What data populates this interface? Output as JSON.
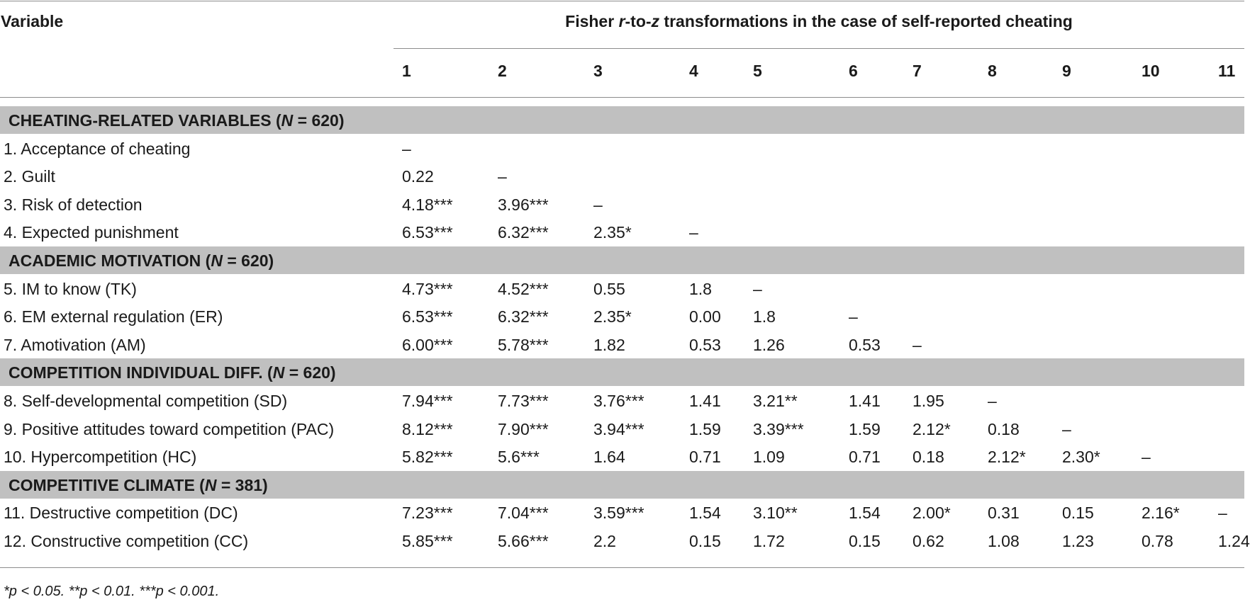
{
  "header": {
    "variable_label": "Variable",
    "title_parts": [
      "Fisher ",
      "r",
      "-to-",
      "z",
      " transformations in the case of self-reported cheating"
    ],
    "columns": [
      "1",
      "2",
      "3",
      "4",
      "5",
      "6",
      "7",
      "8",
      "9",
      "10",
      "11"
    ]
  },
  "sections": [
    {
      "label": "CHEATING-RELATED VARIABLES (",
      "n_symbol": "N",
      "n_text": " = 620)",
      "rows": [
        {
          "label": "1. Acceptance of cheating",
          "cells": [
            "–"
          ]
        },
        {
          "label": "2. Guilt",
          "cells": [
            "0.22",
            "–"
          ]
        },
        {
          "label": "3. Risk of detection",
          "cells": [
            "4.18***",
            "3.96***",
            "–"
          ]
        },
        {
          "label": "4. Expected punishment",
          "cells": [
            "6.53***",
            "6.32***",
            "2.35*",
            "–"
          ]
        }
      ]
    },
    {
      "label": "ACADEMIC MOTIVATION (",
      "n_symbol": "N",
      "n_text": " = 620)",
      "rows": [
        {
          "label": "5. IM to know (TK)",
          "cells": [
            "4.73***",
            "4.52***",
            "0.55",
            "1.8",
            "–"
          ]
        },
        {
          "label": "6. EM external regulation (ER)",
          "cells": [
            "6.53***",
            "6.32***",
            "2.35*",
            "0.00",
            "1.8",
            "–"
          ]
        },
        {
          "label": "7. Amotivation (AM)",
          "cells": [
            "6.00***",
            "5.78***",
            "1.82",
            "0.53",
            "1.26",
            "0.53",
            "–"
          ]
        }
      ]
    },
    {
      "label": "COMPETITION INDIVIDUAL DIFF. (",
      "n_symbol": "N",
      "n_text": " = 620)",
      "rows": [
        {
          "label": "8. Self-developmental competition (SD)",
          "cells": [
            "7.94***",
            "7.73***",
            "3.76***",
            "1.41",
            "3.21**",
            "1.41",
            "1.95",
            "–"
          ]
        },
        {
          "label": "9. Positive attitudes toward competition (PAC)",
          "cells": [
            "8.12***",
            "7.90***",
            "3.94***",
            "1.59",
            "3.39***",
            "1.59",
            "2.12*",
            "0.18",
            "–"
          ]
        },
        {
          "label": "10. Hypercompetition (HC)",
          "cells": [
            "5.82***",
            "5.6***",
            "1.64",
            "0.71",
            "1.09",
            "0.71",
            "0.18",
            "2.12*",
            "2.30*",
            "–"
          ]
        }
      ]
    },
    {
      "label": "COMPETITIVE CLIMATE (",
      "n_symbol": "N",
      "n_text": " = 381)",
      "rows": [
        {
          "label": "11. Destructive competition (DC)",
          "cells": [
            "7.23***",
            "7.04***",
            "3.59***",
            "1.54",
            "3.10**",
            "1.54",
            "2.00*",
            "0.31",
            "0.15",
            "2.16*",
            "–"
          ]
        },
        {
          "label": "12. Constructive competition (CC)",
          "cells": [
            "5.85***",
            "5.66***",
            "2.2",
            "0.15",
            "1.72",
            "0.15",
            "0.62",
            "1.08",
            "1.23",
            "0.78",
            "1.24"
          ]
        }
      ]
    }
  ],
  "footnote": "*p < 0.05. **p < 0.01. ***p < 0.001."
}
